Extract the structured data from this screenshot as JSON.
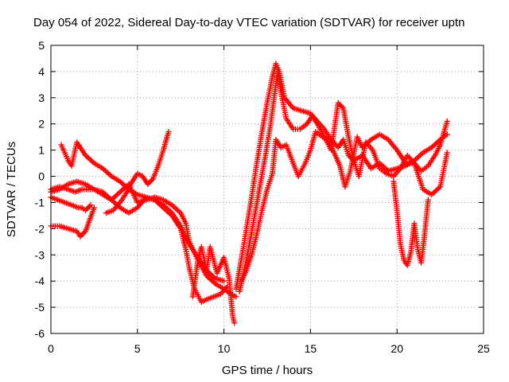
{
  "chart_data": {
    "type": "scatter",
    "title": "Day 054 of 2022, Sidereal Day-to-day VTEC variation (SDTVAR) for receiver uptn",
    "xlabel": "GPS time / hours",
    "ylabel": "SDTVAR / TECUs",
    "xlim": [
      0,
      25
    ],
    "ylim": [
      -6,
      5
    ],
    "xticks": [
      0,
      5,
      10,
      15,
      20,
      25
    ],
    "yticks": [
      -6,
      -5,
      -4,
      -3,
      -2,
      -1,
      0,
      1,
      2,
      3,
      4,
      5
    ],
    "grid": true,
    "marker": "plus",
    "color": "#ff0000",
    "series": [
      {
        "name": "track-1",
        "x": [
          0.0,
          0.5,
          1.0,
          1.4,
          1.8,
          2.5,
          3.0,
          3.5,
          4.0,
          4.5,
          5.0,
          5.5,
          6.0,
          6.5,
          7.0,
          7.5,
          7.8,
          8.0,
          8.5,
          9.0,
          9.5,
          10.0,
          10.4,
          10.7
        ],
        "y": [
          -0.5,
          -0.4,
          -0.5,
          -0.6,
          -0.5,
          -0.5,
          -0.7,
          -0.9,
          -0.6,
          -0.3,
          -1.0,
          -0.9,
          -0.8,
          -0.9,
          -1.1,
          -1.4,
          -1.8,
          -2.5,
          -3.2,
          -3.8,
          -4.1,
          -4.3,
          -4.5,
          -4.6
        ]
      },
      {
        "name": "track-2",
        "x": [
          0.0,
          0.5,
          1.0,
          1.5,
          2.0,
          2.5,
          3.0,
          3.5,
          4.0,
          4.5,
          5.0,
          5.5,
          6.0,
          6.5,
          7.0,
          7.5,
          7.8,
          8.0,
          8.3,
          8.7,
          9.0,
          9.4,
          9.8,
          10.2
        ],
        "y": [
          -0.6,
          -0.5,
          -0.3,
          -0.2,
          -0.3,
          -0.5,
          -0.6,
          -0.9,
          -1.2,
          -1.4,
          -1.2,
          -0.8,
          -0.9,
          -1.2,
          -1.5,
          -2.0,
          -2.8,
          -3.5,
          -4.3,
          -4.8,
          -4.7,
          -4.6,
          -4.5,
          -4.2
        ]
      },
      {
        "name": "track-3",
        "x": [
          0.0,
          0.4,
          0.8,
          1.2,
          1.6,
          1.8,
          2.0,
          2.3
        ],
        "y": [
          -0.8,
          -0.9,
          -1.0,
          -1.1,
          -1.2,
          -1.2,
          -1.3,
          -1.1
        ]
      },
      {
        "name": "track-4",
        "x": [
          0.0,
          0.5,
          1.0,
          1.5,
          1.7,
          2.0,
          2.5
        ],
        "y": [
          -1.9,
          -1.9,
          -2.0,
          -2.1,
          -2.3,
          -2.1,
          -1.2
        ]
      },
      {
        "name": "track-5",
        "x": [
          0.6,
          0.8,
          1.0,
          1.2,
          1.5,
          2.0,
          2.5,
          3.0,
          3.5,
          4.0,
          4.5,
          5.0,
          5.5,
          6.0,
          6.5,
          7.0,
          7.5,
          8.0,
          8.5,
          9.0,
          9.5,
          10.0
        ],
        "y": [
          1.2,
          0.9,
          0.6,
          0.4,
          1.3,
          0.8,
          0.5,
          0.3,
          0.0,
          -0.2,
          -0.5,
          -0.7,
          -0.8,
          -0.9,
          -1.1,
          -1.4,
          -1.9,
          -2.6,
          -3.1,
          -3.6,
          -3.9,
          -4.0
        ]
      },
      {
        "name": "track-6",
        "x": [
          3.2,
          3.6,
          4.0,
          4.4,
          4.7,
          5.0,
          5.3,
          5.6,
          5.9,
          6.2,
          6.5,
          6.8
        ],
        "y": [
          -1.4,
          -1.3,
          -1.0,
          -0.6,
          -0.2,
          0.1,
          0.0,
          -0.3,
          -0.1,
          0.4,
          1.0,
          1.7
        ]
      },
      {
        "name": "track-7",
        "x": [
          8.2,
          8.5,
          8.7,
          9.0,
          9.2,
          9.6,
          10.0,
          10.3,
          10.5,
          10.6
        ],
        "y": [
          -4.6,
          -3.2,
          -2.7,
          -3.6,
          -2.7,
          -3.7,
          -3.1,
          -3.9,
          -5.3,
          -5.6
        ]
      },
      {
        "name": "track-8",
        "x": [
          10.7,
          11.0,
          11.3,
          11.6,
          11.9,
          12.2,
          12.5,
          12.8,
          13.0,
          13.2,
          13.5,
          14.0,
          14.5,
          15.0,
          15.4,
          15.8,
          16.2,
          16.6,
          16.9,
          17.2,
          17.5,
          18.0,
          18.5,
          19.0,
          19.5,
          20.0,
          20.5,
          21.0,
          21.5,
          22.0,
          22.5,
          22.9
        ],
        "y": [
          -4.3,
          -3.2,
          -2.0,
          -0.8,
          0.5,
          1.7,
          2.8,
          3.8,
          4.3,
          4.0,
          3.0,
          2.6,
          2.5,
          2.4,
          2.1,
          1.8,
          1.4,
          1.1,
          1.4,
          0.8,
          0.6,
          0.8,
          0.3,
          0.5,
          0.2,
          0.3,
          0.4,
          0.6,
          0.9,
          1.1,
          1.4,
          1.6
        ]
      },
      {
        "name": "track-9",
        "x": [
          10.9,
          11.2,
          11.5,
          11.8,
          12.1,
          12.4,
          12.7,
          12.9,
          13.1,
          13.3,
          13.6,
          14.0,
          14.4,
          14.8,
          15.1,
          15.4,
          15.8,
          16.2,
          16.6,
          16.9,
          17.2,
          17.5,
          17.8,
          18.2,
          18.6,
          19.0,
          19.4,
          19.8,
          20.2,
          20.6,
          21.0,
          21.4,
          21.8,
          22.2,
          22.5,
          22.9
        ],
        "y": [
          -4.4,
          -3.5,
          -2.5,
          -1.4,
          -0.3,
          0.8,
          2.0,
          3.0,
          4.0,
          3.2,
          2.2,
          1.8,
          1.8,
          2.0,
          2.3,
          2.0,
          1.5,
          1.0,
          2.8,
          2.6,
          1.5,
          0.6,
          0.0,
          1.3,
          1.0,
          0.3,
          0.1,
          0.0,
          0.3,
          0.8,
          0.5,
          0.2,
          0.4,
          0.8,
          1.2,
          2.1
        ]
      },
      {
        "name": "track-10",
        "x": [
          11.0,
          11.3,
          11.6,
          11.9,
          12.2,
          12.5,
          12.8,
          13.0,
          13.3,
          13.6,
          14.0,
          14.3,
          14.7,
          15.0,
          15.3,
          15.7,
          16.0,
          16.3,
          16.7,
          17.0,
          17.3,
          17.7,
          18.0,
          18.5,
          19.0,
          19.5,
          20.0,
          20.5,
          21.0,
          21.5,
          22.0,
          22.5,
          22.9
        ],
        "y": [
          -4.0,
          -3.6,
          -3.0,
          -2.2,
          -1.3,
          -0.5,
          0.1,
          1.4,
          1.1,
          1.2,
          0.5,
          0.0,
          0.5,
          1.0,
          1.7,
          1.5,
          1.4,
          1.0,
          0.4,
          -0.4,
          0.2,
          1.5,
          1.1,
          1.4,
          1.6,
          1.4,
          1.0,
          0.5,
          0.5,
          -0.5,
          -0.7,
          -0.4,
          0.9
        ]
      },
      {
        "name": "track-11",
        "x": [
          19.8,
          20.0,
          20.2,
          20.4,
          20.6,
          20.8,
          21.0,
          21.2,
          21.4,
          21.6,
          21.8
        ],
        "y": [
          -0.2,
          -1.3,
          -2.6,
          -3.2,
          -3.4,
          -2.9,
          -1.8,
          -2.8,
          -3.3,
          -2.2,
          -0.9
        ]
      }
    ]
  }
}
